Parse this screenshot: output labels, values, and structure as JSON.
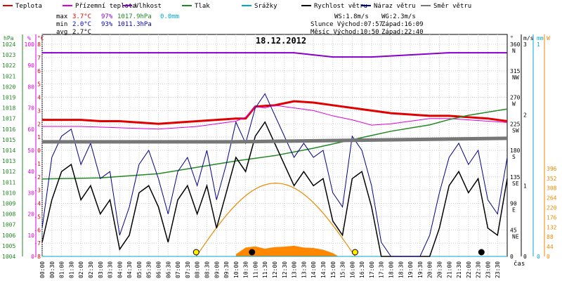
{
  "chart_data": {
    "type": "line",
    "title": "18.12.2012",
    "xlabel": "čas",
    "legend": [
      {
        "label": "Teplota",
        "color": "#e00000"
      },
      {
        "label": "Přízemní teplota",
        "color": "#dd00dd"
      },
      {
        "label": "Vlhkost",
        "color": "#8800cc"
      },
      {
        "label": "Tlak",
        "color": "#228822"
      },
      {
        "label": "Srážky",
        "color": "#00aacc"
      },
      {
        "label": "Rychlost větru",
        "color": "#000000"
      },
      {
        "label": "Náraz větru",
        "color": "#000088"
      },
      {
        "label": "Směr větru",
        "color": "#777777"
      }
    ],
    "stats": {
      "rows": [
        {
          "label": "max",
          "temp": "3.7°C",
          "hum": "97%",
          "press": "1017.9hPa",
          "rain": "0.0mm"
        },
        {
          "label": "min",
          "temp": "2.0°C",
          "hum": "93%",
          "press": "1011.3hPa",
          "rain": ""
        },
        {
          "label": "avg",
          "temp": "2.7°C",
          "hum": "",
          "press": "",
          "rain": ""
        }
      ]
    },
    "info": {
      "ws": "WS:1.8m/s",
      "wg": "WG:2.3m/s",
      "sun": "Slunce Východ:07:57",
      "sun_set": "Západ:16:09",
      "moon": "Měsíc Východ:10:50",
      "moon_set": "Západ:22:40"
    },
    "axes": {
      "hpa": {
        "unit": "hPa",
        "range": [
          1004,
          1024
        ],
        "ticks": [
          "1024",
          "1023",
          "1022",
          "1021",
          "1020",
          "1019",
          "1018",
          "1017",
          "1016",
          "1015",
          "1014",
          "1013",
          "1012",
          "1011",
          "1010",
          "1009",
          "1008",
          "1007",
          "1006",
          "1005",
          "1004"
        ]
      },
      "pct": {
        "unit": "%",
        "range": [
          0,
          100
        ],
        "ticks": [
          "100",
          "90",
          "80",
          "70",
          "60",
          "50",
          "40",
          "30",
          "20",
          "10",
          "0"
        ]
      },
      "temp": {
        "unit": "°C",
        "range": [
          -8,
          8
        ],
        "ticks": [
          "8",
          "7",
          "6",
          "5",
          "4",
          "3",
          "2",
          "1",
          "0",
          "-1",
          "-2",
          "-3",
          "-4",
          "-5",
          "-6",
          "-7",
          "-8"
        ]
      },
      "dir": {
        "unit": "°",
        "range": [
          0,
          360
        ],
        "ticks": [
          {
            "v": "360",
            "c": "N"
          },
          {
            "v": "315",
            "c": "NW"
          },
          {
            "v": "270",
            "c": "W"
          },
          {
            "v": "225",
            "c": "SW"
          },
          {
            "v": "180",
            "c": "S"
          },
          {
            "v": "135",
            "c": "SE"
          },
          {
            "v": "90",
            "c": "E"
          },
          {
            "v": "45",
            "c": "NE"
          },
          {
            "v": "0",
            "c": ""
          }
        ]
      },
      "ms": {
        "unit": "m/s",
        "range": [
          0,
          3
        ],
        "ticks": [
          "3",
          "2",
          "1",
          "0"
        ]
      },
      "mm": {
        "unit": "mm",
        "ticks": [
          "1",
          "0"
        ]
      },
      "w": {
        "unit": "W",
        "range": [
          0,
          440
        ],
        "ticks": [
          "396",
          "352",
          "308",
          "264",
          "220",
          "176",
          "132",
          "88",
          "44",
          "0"
        ]
      }
    },
    "xticks": [
      "00:00",
      "00:30",
      "01:00",
      "01:30",
      "02:00",
      "02:30",
      "03:00",
      "03:30",
      "04:00",
      "04:30",
      "05:00",
      "05:30",
      "06:00",
      "06:30",
      "07:00",
      "07:30",
      "08:00",
      "08:30",
      "09:00",
      "09:30",
      "10:00",
      "10:30",
      "11:00",
      "11:30",
      "12:00",
      "12:30",
      "13:00",
      "13:30",
      "14:00",
      "14:30",
      "15:00",
      "15:30",
      "16:00",
      "16:30",
      "17:00",
      "17:30",
      "18:00",
      "18:30",
      "19:00",
      "19:30",
      "20:00",
      "20:30",
      "21:00",
      "21:30",
      "22:00",
      "22:30",
      "23:00",
      "23:30"
    ],
    "series": [
      {
        "name": "Teplota",
        "axis": "temp",
        "color": "#e00000",
        "x": [
          0,
          1,
          2,
          3,
          4,
          5,
          6,
          7,
          8,
          9,
          10,
          10.5,
          11,
          12,
          13,
          14,
          15,
          16,
          16.5,
          17,
          18,
          19,
          20,
          21,
          22,
          23,
          24
        ],
        "y": [
          2.3,
          2.3,
          2.3,
          2.2,
          2.2,
          2.1,
          2.0,
          2.1,
          2.2,
          2.3,
          2.4,
          2.4,
          3.3,
          3.4,
          3.7,
          3.6,
          3.4,
          3.2,
          3.1,
          3.0,
          2.8,
          2.7,
          2.6,
          2.6,
          2.5,
          2.4,
          2.2
        ]
      },
      {
        "name": "Přízemní teplota",
        "axis": "temp",
        "color": "#dd00dd",
        "x": [
          0,
          2,
          4,
          6,
          8,
          9,
          10,
          10.5,
          11,
          11.5,
          12,
          13,
          14,
          15,
          16,
          17,
          18,
          19,
          20,
          21,
          22,
          23,
          24
        ],
        "y": [
          1.8,
          1.8,
          1.7,
          1.6,
          1.8,
          2.0,
          2.2,
          2.5,
          3.3,
          3.2,
          3.4,
          3.2,
          3.0,
          2.6,
          2.3,
          1.9,
          2.0,
          2.2,
          2.4,
          2.4,
          2.3,
          2.2,
          2.1
        ]
      },
      {
        "name": "Vlhkost",
        "axis": "pct",
        "color": "#8800cc",
        "x": [
          0,
          6,
          10,
          13,
          14,
          15,
          17,
          19,
          21,
          24
        ],
        "y": [
          96,
          96,
          96,
          96,
          95,
          94,
          94,
          95,
          96,
          96
        ]
      },
      {
        "name": "Tlak",
        "axis": "hpa",
        "color": "#228822",
        "x": [
          0,
          3,
          6,
          8,
          10,
          12,
          14,
          16,
          18,
          20,
          21,
          22,
          23,
          24
        ],
        "y": [
          1011.3,
          1011.4,
          1011.8,
          1012.4,
          1013.0,
          1013.5,
          1014.2,
          1015.0,
          1015.8,
          1016.4,
          1016.9,
          1017.3,
          1017.6,
          1017.9
        ]
      },
      {
        "name": "Srážky",
        "axis": "mm",
        "color": "#00aacc",
        "x": [
          0,
          24
        ],
        "y": [
          0,
          0
        ]
      },
      {
        "name": "Rychlost větru",
        "axis": "ms",
        "color": "#000000",
        "x": [
          0,
          0.5,
          1,
          1.5,
          2,
          2.5,
          3,
          3.5,
          4,
          4.5,
          5,
          5.5,
          6,
          6.5,
          7,
          7.5,
          8,
          8.5,
          9,
          9.5,
          10,
          10.5,
          11,
          11.5,
          12,
          12.5,
          13,
          13.5,
          14,
          14.5,
          15,
          15.5,
          16,
          16.5,
          17,
          17.5,
          18,
          18.5,
          19,
          19.5,
          20,
          20.5,
          21,
          21.5,
          22,
          22.5,
          23,
          23.5,
          24
        ],
        "y": [
          0.2,
          0.8,
          1.2,
          1.3,
          0.8,
          1.0,
          0.6,
          0.8,
          0.1,
          0.3,
          0.9,
          1.0,
          0.7,
          0.2,
          0.8,
          1.0,
          0.6,
          1.0,
          0.4,
          0.9,
          1.4,
          1.2,
          1.7,
          1.9,
          1.6,
          1.3,
          1.0,
          1.2,
          1.0,
          1.1,
          0.5,
          0.3,
          1.1,
          1.2,
          0.7,
          0.0,
          0.0,
          0.0,
          0.0,
          0.0,
          0.0,
          0.4,
          1.0,
          1.2,
          0.9,
          1.1,
          0.4,
          0.3,
          1.1
        ]
      },
      {
        "name": "Náraz větru",
        "axis": "ms",
        "color": "#000088",
        "x": [
          0,
          0.5,
          1,
          1.5,
          2,
          2.5,
          3,
          3.5,
          4,
          4.5,
          5,
          5.5,
          6,
          6.5,
          7,
          7.5,
          8,
          8.5,
          9,
          9.5,
          10,
          10.5,
          11,
          11.5,
          12,
          12.5,
          13,
          13.5,
          14,
          14.5,
          15,
          15.5,
          16,
          16.5,
          17,
          17.5,
          18,
          18.5,
          19,
          19.5,
          20,
          20.5,
          21,
          21.5,
          22,
          22.5,
          23,
          23.5,
          24
        ],
        "y": [
          0.4,
          1.4,
          1.7,
          1.8,
          1.3,
          1.6,
          1.1,
          1.2,
          0.3,
          0.7,
          1.3,
          1.5,
          1.1,
          0.6,
          1.2,
          1.4,
          1.0,
          1.5,
          0.8,
          1.3,
          1.9,
          1.6,
          2.1,
          2.3,
          2.0,
          1.7,
          1.4,
          1.6,
          1.4,
          1.5,
          0.9,
          0.7,
          1.7,
          1.5,
          1.0,
          0.2,
          0.0,
          0.0,
          0.0,
          0.0,
          0.3,
          0.9,
          1.4,
          1.6,
          1.3,
          1.5,
          0.8,
          0.6,
          1.4
        ]
      },
      {
        "name": "Směr větru",
        "axis": "ms",
        "color": "#777777",
        "x": [
          0,
          9.8,
          24
        ],
        "y": [
          1.62,
          1.62,
          1.67
        ]
      }
    ],
    "sun_radiation": {
      "axis": "w",
      "color": "#ff8800",
      "x": [
        10,
        10.5,
        11,
        11.5,
        12,
        12.5,
        13,
        13.5,
        14,
        14.5,
        15,
        15.3
      ],
      "y": [
        10,
        40,
        45,
        35,
        42,
        44,
        48,
        40,
        38,
        30,
        15,
        0
      ]
    },
    "sun_arc": {
      "axis": "w",
      "color": "#ee8800",
      "x": [
        7.95,
        16.15
      ],
      "peak": 330
    },
    "markers": [
      {
        "name": "sunrise",
        "x": 7.95,
        "color": "#ffee00"
      },
      {
        "name": "sunset",
        "x": 16.15,
        "color": "#ffee00"
      },
      {
        "name": "moonrise",
        "x": 10.83,
        "color": "#000000"
      },
      {
        "name": "moonset",
        "x": 22.67,
        "color": "#000000"
      }
    ]
  }
}
